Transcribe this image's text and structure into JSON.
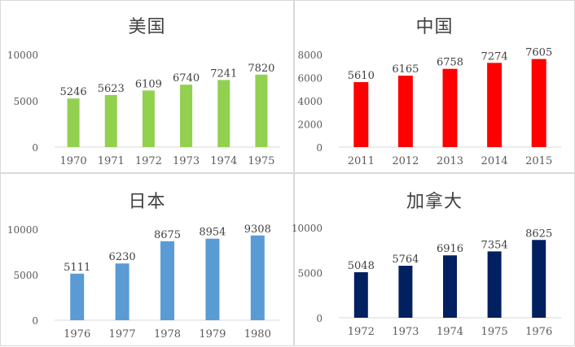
{
  "chart_data": [
    {
      "type": "bar",
      "title": "美国",
      "categories": [
        "1970",
        "1971",
        "1972",
        "1973",
        "1974",
        "1975"
      ],
      "values": [
        5246,
        5623,
        6109,
        6740,
        7241,
        7820
      ],
      "ylim": [
        0,
        10000
      ],
      "yticks": [
        "0",
        "5000",
        "10000"
      ],
      "color": "#92d050",
      "grid": false
    },
    {
      "type": "bar",
      "title": "中国",
      "categories": [
        "2011",
        "2012",
        "2013",
        "2014",
        "2015"
      ],
      "values": [
        5610,
        6165,
        6758,
        7274,
        7605
      ],
      "ylim": [
        0,
        8000
      ],
      "yticks": [
        "0",
        "2000",
        "4000",
        "6000",
        "8000"
      ],
      "color": "#ff0000",
      "grid": false
    },
    {
      "type": "bar",
      "title": "日本",
      "categories": [
        "1976",
        "1977",
        "1978",
        "1979",
        "1980"
      ],
      "values": [
        5111,
        6230,
        8675,
        8954,
        9308
      ],
      "ylim": [
        0,
        10000
      ],
      "yticks": [
        "0",
        "5000",
        "10000"
      ],
      "color": "#5b9bd5",
      "grid": false
    },
    {
      "type": "bar",
      "title": "加拿大",
      "categories": [
        "1972",
        "1973",
        "1974",
        "1975",
        "1976"
      ],
      "values": [
        5048,
        5764,
        6916,
        7354,
        8625
      ],
      "ylim": [
        0,
        10000
      ],
      "yticks": [
        "0",
        "5000",
        "10000"
      ],
      "color": "#002060",
      "grid": false
    }
  ]
}
